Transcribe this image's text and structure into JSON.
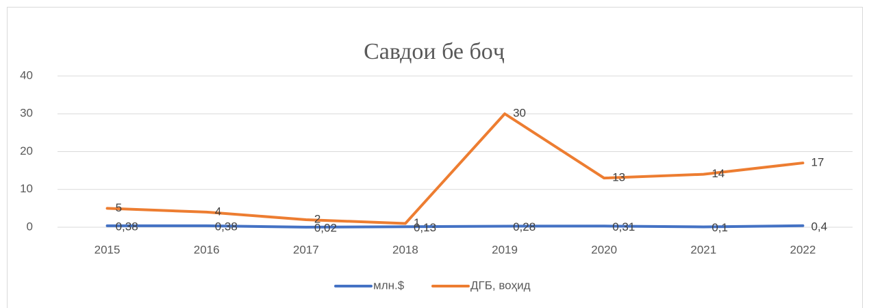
{
  "chart_data": {
    "type": "line",
    "title": "Савдои бе боҷ",
    "categories": [
      "2015",
      "2016",
      "2017",
      "2018",
      "2019",
      "2020",
      "2021",
      "2022"
    ],
    "series": [
      {
        "name": "млн.$",
        "color": "#4472c4",
        "values": [
          0.38,
          0.38,
          0.02,
          0.13,
          0.28,
          0.31,
          0.1,
          0.4
        ],
        "value_labels": [
          "0,38",
          "0,38",
          "0,02",
          "0,13",
          "0,28",
          "0,31",
          "0,1",
          "0,4"
        ]
      },
      {
        "name": "ДГБ, воҳид",
        "color": "#ed7d31",
        "values": [
          5,
          4,
          2,
          1,
          30,
          13,
          14,
          17
        ]
      }
    ],
    "ylim": [
      0,
      40
    ],
    "yticks": [
      0,
      10,
      20,
      30,
      40
    ],
    "grid": true,
    "legend": "bottom"
  }
}
